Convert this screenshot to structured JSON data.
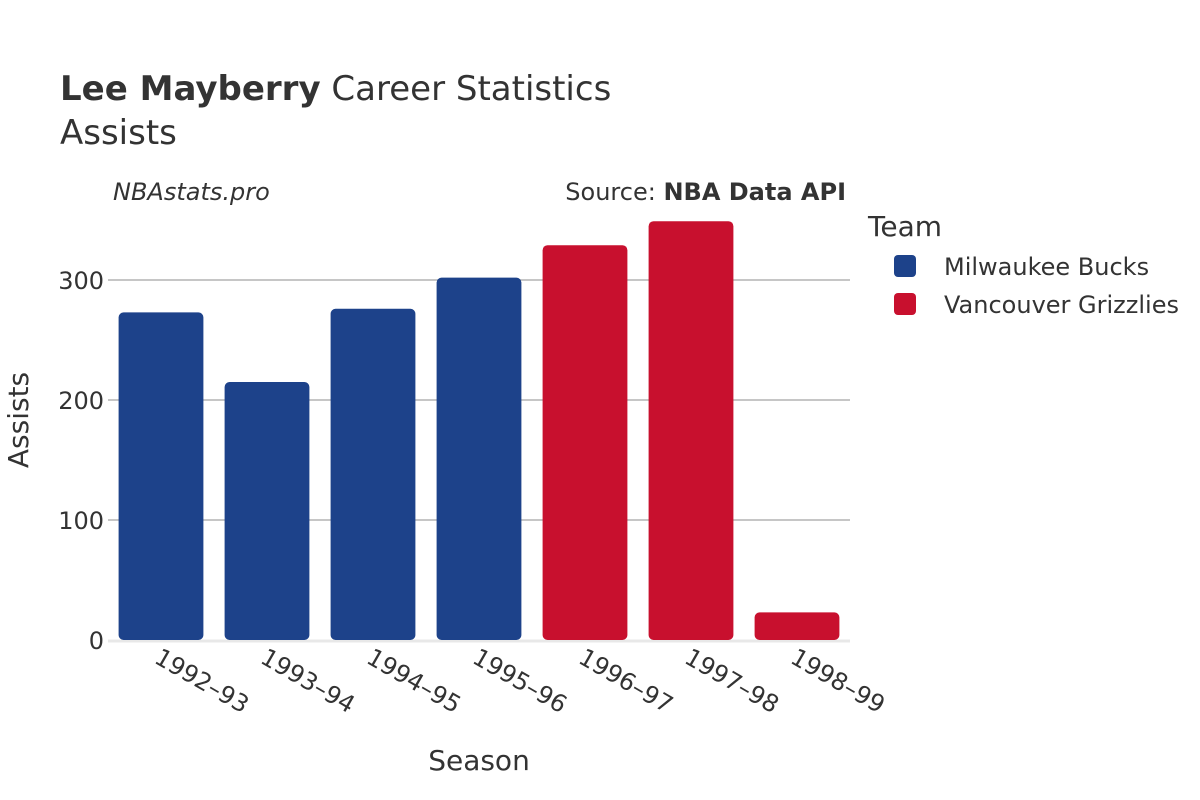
{
  "title": {
    "player": "Lee Mayberry",
    "rest": " Career Statistics",
    "subtitle": "Assists"
  },
  "watermark": "NBAstats.pro",
  "source": {
    "prefix": "Source: ",
    "name": "NBA Data API"
  },
  "legend": {
    "title": "Team",
    "items": [
      {
        "name": "Milwaukee Bucks",
        "color": "#1d428a"
      },
      {
        "name": "Vancouver Grizzlies",
        "color": "#c8102e"
      }
    ]
  },
  "chart_data": {
    "type": "bar",
    "xlabel": "Season",
    "ylabel": "Assists",
    "ylim": [
      0,
      350
    ],
    "yticks": [
      0,
      100,
      200,
      300
    ],
    "grid": true,
    "legend_position": "right",
    "categories": [
      "1992–93",
      "1993–94",
      "1994–95",
      "1995–96",
      "1996–97",
      "1997–98",
      "1998–99"
    ],
    "values": [
      273,
      215,
      276,
      302,
      329,
      349,
      23
    ],
    "teams": [
      "Milwaukee Bucks",
      "Milwaukee Bucks",
      "Milwaukee Bucks",
      "Milwaukee Bucks",
      "Vancouver Grizzlies",
      "Vancouver Grizzlies",
      "Vancouver Grizzlies"
    ]
  }
}
